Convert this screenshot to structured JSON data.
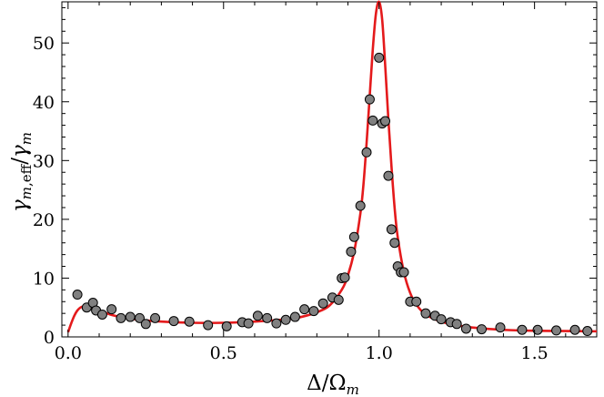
{
  "chart_data": {
    "type": "scatter",
    "xlabel": "Δ/Ω_m",
    "ylabel": "γ_m,eff/γ_m",
    "xlim": [
      -0.02,
      1.7
    ],
    "ylim": [
      0,
      57
    ],
    "x_ticks": [
      0.0,
      0.5,
      1.0,
      1.5
    ],
    "x_tick_labels": [
      "0.0",
      "0.5",
      "1.0",
      "1.5"
    ],
    "y_ticks": [
      0,
      10,
      20,
      30,
      40,
      50
    ],
    "y_tick_labels": [
      "0",
      "10",
      "20",
      "30",
      "40",
      "50"
    ],
    "grid": false,
    "legend": "none",
    "colors": {
      "curve": "#e41a1c",
      "points": "#808080",
      "point_edge": "#000000"
    },
    "series": [
      {
        "kind": "points",
        "x": [
          0.03,
          0.06,
          0.08,
          0.09,
          0.11,
          0.14,
          0.17,
          0.2,
          0.23,
          0.25,
          0.28,
          0.34,
          0.39,
          0.45,
          0.51,
          0.56,
          0.58,
          0.61,
          0.64,
          0.67,
          0.7,
          0.73,
          0.76,
          0.79,
          0.82,
          0.85,
          0.87,
          0.88,
          0.89,
          0.91,
          0.92,
          0.94,
          0.96,
          0.97,
          0.98,
          1.0,
          1.01,
          1.02,
          1.03,
          1.04,
          1.05,
          1.06,
          1.07,
          1.08,
          1.1,
          1.12,
          1.15,
          1.18,
          1.2,
          1.23,
          1.25,
          1.28,
          1.33,
          1.39,
          1.46,
          1.51,
          1.57,
          1.63,
          1.67
        ],
        "y": [
          7.2,
          5.0,
          5.8,
          4.5,
          3.8,
          4.7,
          3.2,
          3.4,
          3.2,
          2.2,
          3.2,
          2.7,
          2.6,
          2.0,
          1.8,
          2.5,
          2.3,
          3.6,
          3.2,
          2.3,
          2.9,
          3.4,
          4.7,
          4.4,
          5.7,
          6.7,
          6.3,
          10.0,
          10.1,
          14.5,
          17.0,
          22.3,
          31.4,
          40.4,
          36.8,
          47.5,
          36.3,
          36.7,
          27.4,
          18.3,
          16.0,
          12.0,
          11.0,
          11.0,
          6.0,
          6.0,
          4.0,
          3.6,
          3.0,
          2.5,
          2.2,
          1.4,
          1.3,
          1.6,
          1.2,
          1.2,
          1.1,
          1.2,
          1.0
        ]
      },
      {
        "kind": "curve",
        "x": [
          0.0,
          0.01,
          0.02,
          0.03,
          0.04,
          0.05,
          0.06,
          0.07,
          0.08,
          0.1,
          0.12,
          0.15,
          0.2,
          0.25,
          0.3,
          0.4,
          0.5,
          0.6,
          0.7,
          0.75,
          0.8,
          0.84,
          0.88,
          0.9,
          0.92,
          0.94,
          0.95,
          0.96,
          0.97,
          0.98,
          0.99,
          1.0,
          1.01,
          1.02,
          1.03,
          1.04,
          1.05,
          1.06,
          1.08,
          1.1,
          1.12,
          1.15,
          1.2,
          1.25,
          1.3,
          1.4,
          1.5,
          1.6,
          1.7
        ],
        "y": [
          0.8,
          2.3,
          3.6,
          4.5,
          5.0,
          5.2,
          5.2,
          5.1,
          4.9,
          4.5,
          4.1,
          3.6,
          3.1,
          2.8,
          2.6,
          2.4,
          2.4,
          2.6,
          3.0,
          3.4,
          4.2,
          5.3,
          8.0,
          10.5,
          14.5,
          21.0,
          26.0,
          33.0,
          41.0,
          49.0,
          55.0,
          57.0,
          54.0,
          46.0,
          37.0,
          29.0,
          22.0,
          17.0,
          11.0,
          7.5,
          5.5,
          3.8,
          2.6,
          2.0,
          1.6,
          1.2,
          1.05,
          1.0,
          0.95
        ]
      }
    ]
  }
}
